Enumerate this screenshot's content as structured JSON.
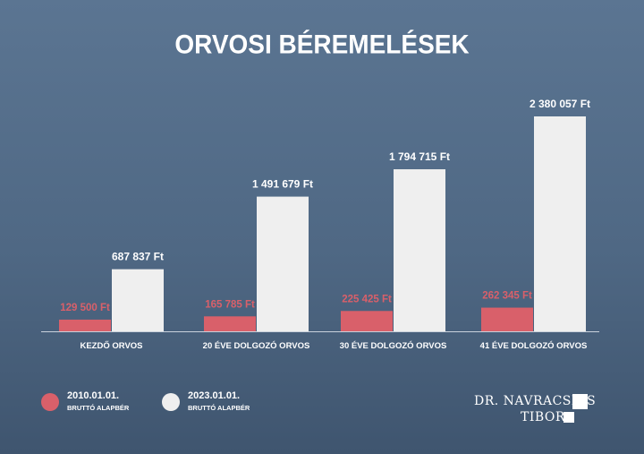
{
  "title": "ORVOSI BÉREMELÉSEK",
  "chart_data": {
    "type": "bar",
    "categories": [
      "KEZDŐ ORVOS",
      "20 ÉVE DOLGOZÓ ORVOS",
      "30 ÉVE DOLGOZÓ ORVOS",
      "41 ÉVE DOLGOZÓ ORVOS"
    ],
    "series": [
      {
        "name": "2010.01.01. BRUTTÓ ALAPBÉR",
        "color": "#d9606a",
        "values": [
          129500,
          165785,
          225425,
          262345
        ],
        "labels": [
          "129 500 Ft",
          "165 785 Ft",
          "225 425 Ft",
          "262 345 Ft"
        ]
      },
      {
        "name": "2023.01.01. BRUTTÓ ALAPBÉR",
        "color": "#efefef",
        "values": [
          687837,
          1491679,
          1794715,
          2380057
        ],
        "labels": [
          "687 837 Ft",
          "1 491 679 Ft",
          "1 794 715 Ft",
          "2 380 057 Ft"
        ]
      }
    ],
    "ylim": [
      0,
      2380057
    ],
    "grid": false,
    "legend": "bottom-left",
    "xlabel": "",
    "ylabel": ""
  },
  "legend": [
    {
      "line1": "2010.01.01.",
      "line2": "BRUTTÓ ALAPBÉR",
      "color": "#d9606a"
    },
    {
      "line1": "2023.01.01.",
      "line2": "BRUTTÓ ALAPBÉR",
      "color": "#efefef"
    }
  ],
  "logo": {
    "line1": "DR. NAVRACSICS",
    "line2": "TIBOR"
  }
}
